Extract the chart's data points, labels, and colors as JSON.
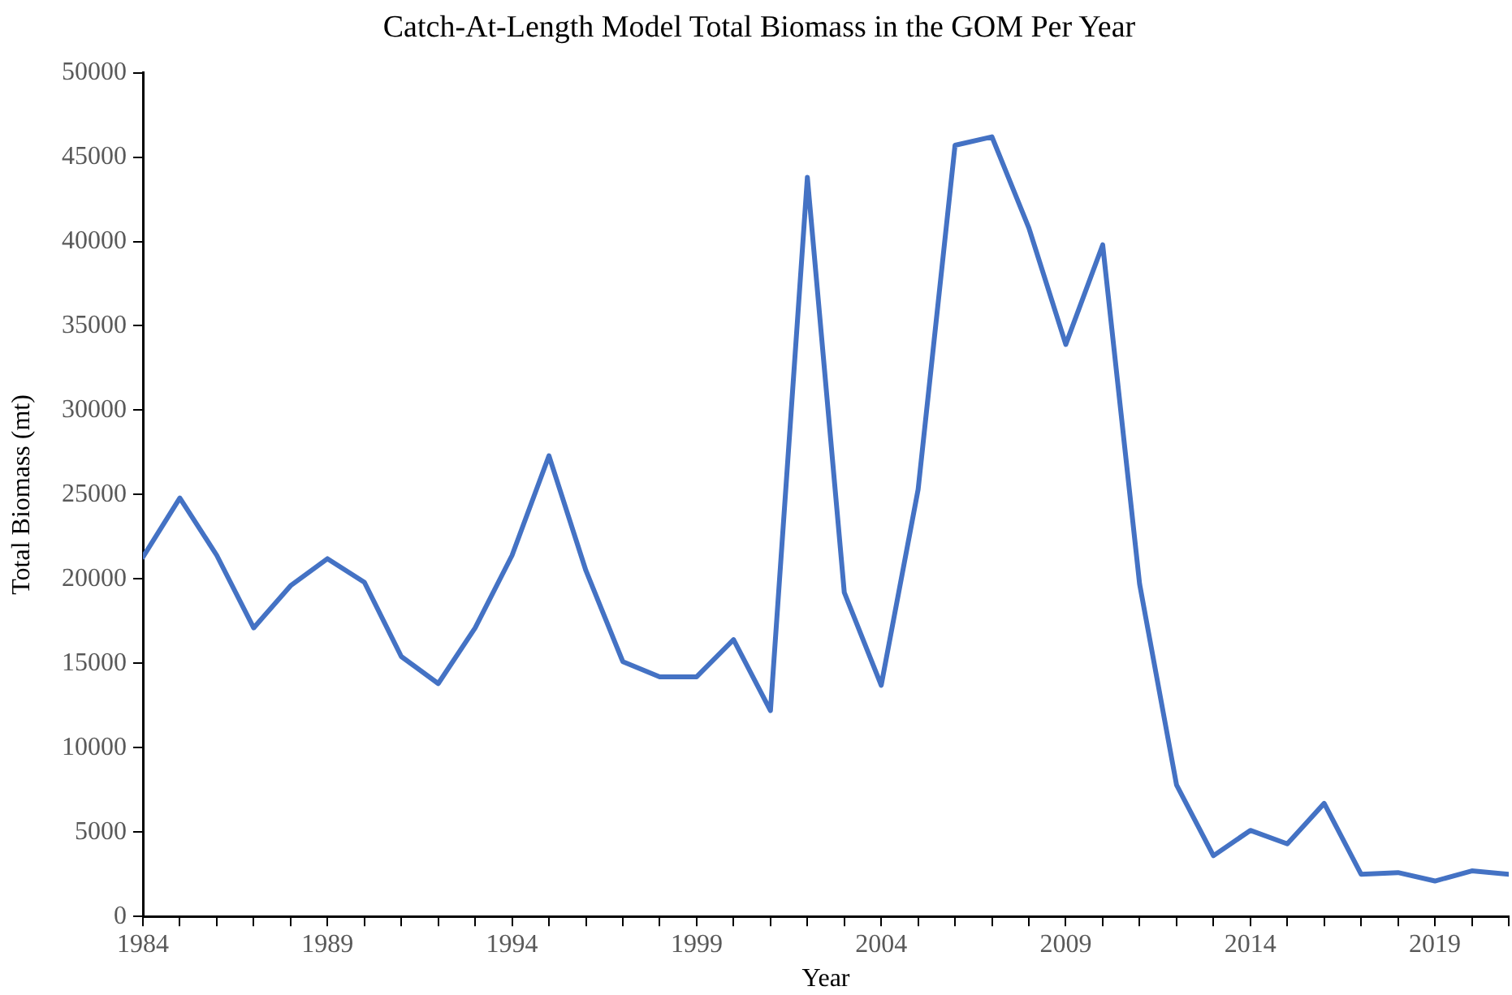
{
  "chart_data": {
    "type": "line",
    "title": "Catch-At-Length Model Total Biomass in the GOM Per Year",
    "xlabel": "Year",
    "ylabel": "Total Biomass (mt)",
    "x": [
      1984,
      1985,
      1986,
      1987,
      1988,
      1989,
      1990,
      1991,
      1992,
      1993,
      1994,
      1995,
      1996,
      1997,
      1998,
      1999,
      2000,
      2001,
      2002,
      2003,
      2004,
      2005,
      2006,
      2007,
      2008,
      2009,
      2010,
      2011,
      2012,
      2013,
      2014,
      2015,
      2016,
      2017,
      2018,
      2019,
      2020,
      2021
    ],
    "series": [
      {
        "color": "#4472c4",
        "values": [
          21300,
          24800,
          21400,
          17100,
          19600,
          21200,
          19800,
          15400,
          13800,
          17100,
          21400,
          27300,
          20500,
          15100,
          14200,
          14200,
          16400,
          12200,
          43800,
          19200,
          13700,
          25300,
          45700,
          46200,
          40800,
          33900,
          39800,
          19700,
          7800,
          3600,
          5100,
          4300,
          6700,
          2500,
          2600,
          2100,
          2700,
          2500
        ]
      }
    ],
    "xlim": [
      1984,
      2021
    ],
    "xticks": [
      1984,
      {
        "value": 1985,
        "label": null
      },
      {
        "value": 1986,
        "label": null
      },
      {
        "value": 1987,
        "label": null
      },
      {
        "value": 1988,
        "label": null
      },
      1989,
      {
        "value": 1990,
        "label": null
      },
      {
        "value": 1991,
        "label": null
      },
      {
        "value": 1992,
        "label": null
      },
      {
        "value": 1993,
        "label": null
      },
      1994,
      {
        "value": 1995,
        "label": null
      },
      {
        "value": 1996,
        "label": null
      },
      {
        "value": 1997,
        "label": null
      },
      {
        "value": 1998,
        "label": null
      },
      1999,
      {
        "value": 2000,
        "label": null
      },
      {
        "value": 2001,
        "label": null
      },
      {
        "value": 2002,
        "label": null
      },
      {
        "value": 2003,
        "label": null
      },
      2004,
      {
        "value": 2005,
        "label": null
      },
      {
        "value": 2006,
        "label": null
      },
      {
        "value": 2007,
        "label": null
      },
      {
        "value": 2008,
        "label": null
      },
      2009,
      {
        "value": 2010,
        "label": null
      },
      {
        "value": 2011,
        "label": null
      },
      {
        "value": 2012,
        "label": null
      },
      {
        "value": 2013,
        "label": null
      },
      2014,
      {
        "value": 2015,
        "label": null
      },
      {
        "value": 2016,
        "label": null
      },
      {
        "value": 2017,
        "label": null
      },
      {
        "value": 2018,
        "label": null
      },
      2019,
      {
        "value": 2020,
        "label": null
      },
      {
        "value": 2021,
        "label": null
      }
    ],
    "ylim": [
      0,
      50000
    ],
    "yticks": [
      0,
      5000,
      10000,
      15000,
      20000,
      25000,
      30000,
      35000,
      40000,
      45000,
      50000
    ],
    "grid": false,
    "legend": false,
    "marker": "none",
    "line_style": "solid"
  }
}
